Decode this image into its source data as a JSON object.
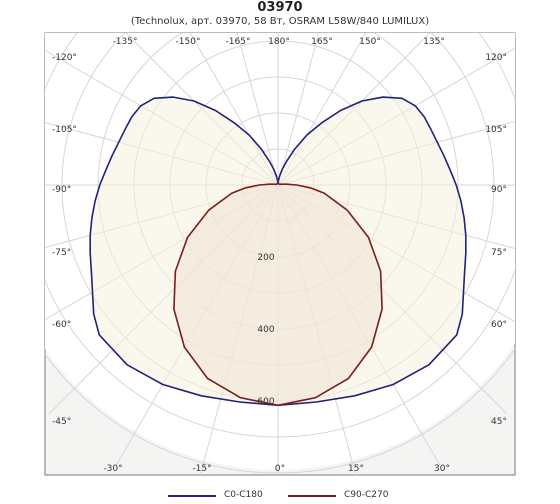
{
  "chart_data": {
    "type": "polar",
    "title": "03970",
    "subtitle": "(Technolux, арт. 03970, 58 Вт, OSRAM L58W/840 LUMILUX)",
    "radial_ticks": [
      "200",
      "400",
      "600"
    ],
    "radial_max": 700,
    "angle_labels_left": [
      "-135°",
      "-150°",
      "-165°",
      "180°",
      "-120°",
      "-105°",
      "-90°",
      "-75°",
      "-60°",
      "-45°",
      "-30°",
      "-15°",
      "0°"
    ],
    "angle_labels_right": [
      "165°",
      "150°",
      "135°",
      "120°",
      "105°",
      "90°",
      "75°",
      "60°",
      "45°",
      "30°",
      "15°"
    ],
    "series": [
      {
        "name": "C0-C180",
        "color": "#1f237a",
        "angles": [
          0,
          10,
          20,
          30,
          40,
          50,
          55,
          60,
          65,
          70,
          75,
          80,
          85,
          90,
          95,
          100,
          105,
          110,
          115,
          120,
          125,
          130,
          135,
          140,
          145,
          150,
          155,
          160,
          165,
          170,
          175,
          180
        ],
        "values": [
          612,
          612,
          623,
          640,
          652,
          648,
          625,
          595,
          572,
          555,
          540,
          525,
          510,
          495,
          480,
          468,
          458,
          452,
          448,
          440,
          420,
          380,
          330,
          270,
          210,
          160,
          110,
          70,
          45,
          25,
          12,
          10
        ]
      },
      {
        "name": "C90-C270",
        "color": "#7a1f1f",
        "angles": [
          0,
          10,
          20,
          30,
          40,
          50,
          60,
          70,
          80,
          85,
          90,
          95,
          100,
          110,
          120,
          130,
          140,
          150,
          160,
          170,
          175,
          180
        ],
        "values": [
          612,
          600,
          572,
          520,
          450,
          372,
          290,
          205,
          130,
          90,
          52,
          25,
          12,
          6,
          4,
          4,
          4,
          4,
          5,
          6,
          8,
          10
        ]
      }
    ]
  }
}
